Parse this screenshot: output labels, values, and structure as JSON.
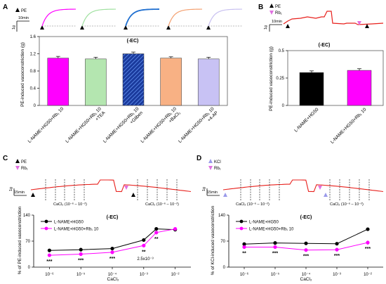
{
  "panels": {
    "A": {
      "label": "A",
      "trace_legend": [
        "PE"
      ],
      "scale_time": "10min",
      "scale_force": "1g",
      "condition": "(-EC)",
      "ylabel": "PE-induced vasoconstriction (g)",
      "trace_colors": [
        "#ff00ff",
        "#9fe09f",
        "#1f6fd0",
        "#f4a070",
        "#c8c0f0"
      ]
    },
    "B": {
      "label": "B",
      "trace_legend": [
        "PE",
        "Rb₁"
      ],
      "scale_time": "10min",
      "scale_force": "1g",
      "condition": "(-EC)",
      "ylabel": "PE-induced vasoconstriction (g)"
    },
    "C": {
      "label": "C",
      "trace_legend": [
        "PE",
        "Rb₁"
      ],
      "scale_time": "15min",
      "scale_force": "1g",
      "cacl_labels": [
        "CaCl₂ (10⁻⁶ – 10⁻²)",
        "CaCl₂ (10⁻⁶ – 10⁻²)"
      ],
      "condition": "(-EC)",
      "ylabel": "% of PE-induced vasoconstriction",
      "xlabel": "CaCl₂",
      "annotation": "2.5x10⁻³"
    },
    "D": {
      "label": "D",
      "trace_legend": [
        "KCl",
        "Rb₁"
      ],
      "scale_time": "15min",
      "scale_force": "1g",
      "cacl_labels": [
        "CaCl₂ (10⁻⁶ – 10⁻²)",
        "CaCl₂ (10⁻⁶ – 10⁻²)"
      ],
      "condition": "(-EC)",
      "ylabel": "% of KCl-induced vasoconstriction",
      "xlabel": "CaCl₂"
    }
  },
  "colors": {
    "magenta": "#ff00ff",
    "trace_red": "#e8201c",
    "black": "#000000",
    "rb1_marker": "#e070e0"
  },
  "chart_data": [
    {
      "panel": "A",
      "type": "bar",
      "categories": [
        "L-NAME+HG50+Rb₁ 10",
        "L-NAME+HG50+Rb₁ 10 +TEA",
        "L-NAME+HG50+Rb₁ 10 +Gliben",
        "L-NAME+HG50+Rb₁ 10 +BaCl₂",
        "L-NAME+HG50+Rb₁ 10 +4-AP"
      ],
      "values": [
        1.1,
        1.08,
        1.2,
        1.1,
        1.08
      ],
      "errors": [
        0.04,
        0.04,
        0.04,
        0.03,
        0.04
      ],
      "bar_colors": [
        "#ff00ff",
        "#b4e6b0",
        "#1a3a9c",
        "#f8b184",
        "#c8c2f4"
      ],
      "hatched": [
        false,
        false,
        true,
        false,
        false
      ],
      "ylabel": "PE-induced vasoconstriction (g)",
      "yticks": [
        0,
        0.4,
        0.8,
        1.2,
        1.6
      ],
      "ytick_labels": [
        "0",
        "0.4",
        "0.8",
        "1.2",
        "1.6"
      ],
      "ylim": [
        0,
        1.6
      ]
    },
    {
      "panel": "B",
      "type": "bar",
      "categories": [
        "L-NAME+HG50",
        "L-NAME+HG50+Rb₁ 10"
      ],
      "values": [
        0.3,
        0.32
      ],
      "errors": [
        0.015,
        0.015
      ],
      "bar_colors": [
        "#000000",
        "#ff00ff"
      ],
      "ylabel": "PE-induced vasoconstriction (g)",
      "yticks": [
        0,
        0.25,
        0.5
      ],
      "ytick_labels": [
        "0",
        "0.25",
        "0.5"
      ],
      "ylim": [
        0,
        0.5
      ]
    },
    {
      "panel": "C",
      "type": "line",
      "x": [
        "10⁻⁶",
        "10⁻⁵",
        "10⁻⁴",
        "10⁻³",
        "2.5x10⁻³",
        "10⁻²"
      ],
      "x_positions": [
        -6,
        -5,
        -4,
        -3,
        -2.6,
        -2
      ],
      "tick_labels": [
        "10⁻⁶",
        "10⁻⁵",
        "10⁻⁴",
        "10⁻³",
        "10⁻²"
      ],
      "series": [
        {
          "name": "L-NAME+HG50",
          "color": "#000000",
          "values": [
            45,
            47,
            50,
            73,
            103,
            101
          ],
          "errors": [
            0,
            0,
            0,
            3,
            2,
            3
          ]
        },
        {
          "name": "L-NAME+HG50+Rb₁ 10",
          "color": "#ff00ff",
          "values": [
            32,
            35,
            40,
            58,
            93,
            103
          ],
          "errors": [
            2,
            2,
            2,
            3,
            3,
            2
          ]
        }
      ],
      "significance": [
        "***",
        "***",
        "***",
        "**",
        "**",
        ""
      ],
      "ylabel": "% of PE-induced vasoconstriction",
      "xlabel": "CaCl₂",
      "yticks": [
        0,
        70,
        140
      ],
      "ylim": [
        0,
        140
      ],
      "legend_position": "top-left"
    },
    {
      "panel": "D",
      "type": "line",
      "x": [
        "10⁻⁶",
        "10⁻⁵",
        "10⁻⁴",
        "10⁻³",
        "10⁻²"
      ],
      "x_positions": [
        -6,
        -5,
        -4,
        -3,
        -2
      ],
      "tick_labels": [
        "10⁻⁶",
        "10⁻⁵",
        "10⁻⁴",
        "10⁻³",
        "10⁻²"
      ],
      "series": [
        {
          "name": "L-NAME+HG50",
          "color": "#000000",
          "values": [
            62,
            65,
            64,
            63,
            102
          ],
          "errors": [
            2,
            2,
            2,
            2,
            2
          ]
        },
        {
          "name": "L-NAME+HG50+Rb₁ 10",
          "color": "#ff00ff",
          "values": [
            54,
            54,
            46,
            47,
            66
          ],
          "errors": [
            2,
            2,
            2,
            2,
            6
          ]
        }
      ],
      "significance": [
        "**",
        "***",
        "***",
        "***",
        "***"
      ],
      "ylabel": "% of KCl-induced vasoconstriction",
      "xlabel": "CaCl₂",
      "yticks": [
        0,
        70,
        140
      ],
      "ylim": [
        0,
        140
      ],
      "legend_position": "top-left"
    }
  ]
}
